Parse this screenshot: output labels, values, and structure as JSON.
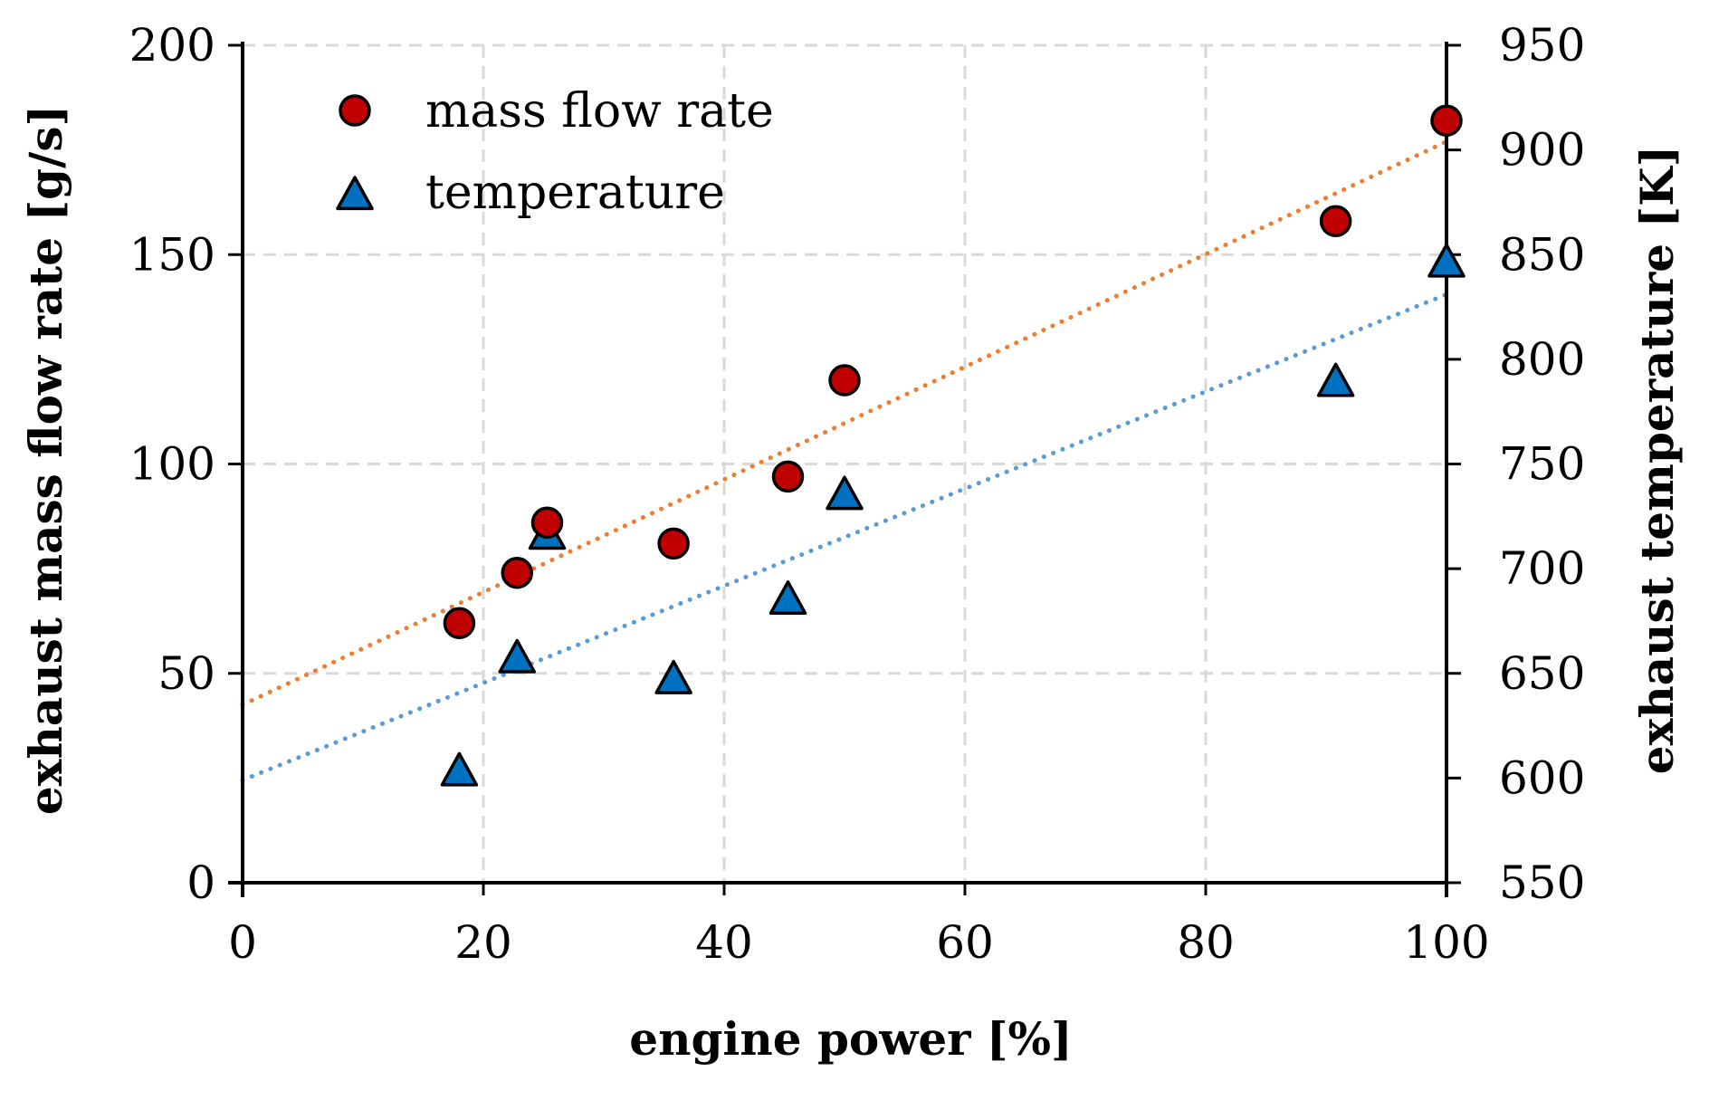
{
  "chart_data": {
    "type": "scatter",
    "title": "",
    "xlabel": "engine power [%]",
    "ylabel_left": "exhaust mass flow rate [g/s]",
    "ylabel_right": "exhaust temperature [K]",
    "xlim": [
      0,
      100
    ],
    "ylim_left": [
      0,
      200
    ],
    "ylim_right": [
      550,
      950
    ],
    "xticks": [
      "0",
      "20",
      "40",
      "60",
      "80",
      "100"
    ],
    "yticks_left": [
      "0",
      "50",
      "100",
      "150",
      "200"
    ],
    "yticks_right": [
      "550",
      "600",
      "650",
      "700",
      "750",
      "800",
      "850",
      "900",
      "950"
    ],
    "grid": true,
    "legend_position": "top-left",
    "series": [
      {
        "name": "mass flow rate",
        "axis": "left",
        "marker": "circle",
        "color": "#c00000",
        "x": [
          18,
          22.8,
          25.3,
          35.8,
          45.3,
          50,
          90.8,
          100
        ],
        "y": [
          62,
          74,
          86,
          81,
          97,
          120,
          158,
          182
        ],
        "trendline": {
          "color": "#ed7d31",
          "x": [
            0,
            100
          ],
          "y": [
            42.5,
            177
          ]
        }
      },
      {
        "name": "temperature",
        "axis": "right",
        "marker": "triangle",
        "color": "#0070c0",
        "x": [
          18,
          22.8,
          25.3,
          35.8,
          45.3,
          50,
          90.8,
          100
        ],
        "y": [
          603,
          657,
          716,
          647,
          685,
          735,
          789,
          846
        ],
        "trendline": {
          "color": "#5b9bd5",
          "x": [
            0,
            100
          ],
          "y": [
            599,
            831
          ]
        }
      }
    ]
  }
}
